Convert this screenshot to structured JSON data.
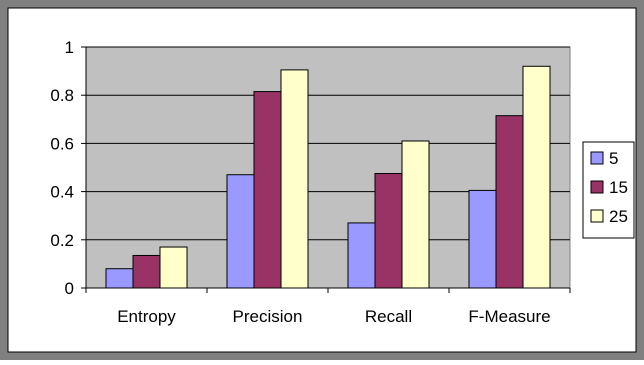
{
  "chart_data": {
    "type": "bar",
    "title": "",
    "xlabel": "",
    "ylabel": "",
    "categories": [
      "Entropy",
      "Precision",
      "Recall",
      "F-Measure"
    ],
    "series": [
      {
        "name": "5",
        "values": [
          0.08,
          0.47,
          0.27,
          0.405
        ],
        "color": "#9999ff"
      },
      {
        "name": "15",
        "values": [
          0.135,
          0.815,
          0.475,
          0.715
        ],
        "color": "#993366"
      },
      {
        "name": "25",
        "values": [
          0.17,
          0.905,
          0.61,
          0.92
        ],
        "color": "#ffffcc"
      }
    ],
    "ylim": [
      0,
      1
    ],
    "yticks": [
      0,
      0.2,
      0.4,
      0.6,
      0.8,
      1
    ],
    "ytick_labels": [
      "0",
      "0.2",
      "0.4",
      "0.6",
      "0.8",
      "1"
    ],
    "grid": true,
    "legend_position": "right",
    "plot_background": "#c0c0c0",
    "frame_color": "#808080"
  }
}
